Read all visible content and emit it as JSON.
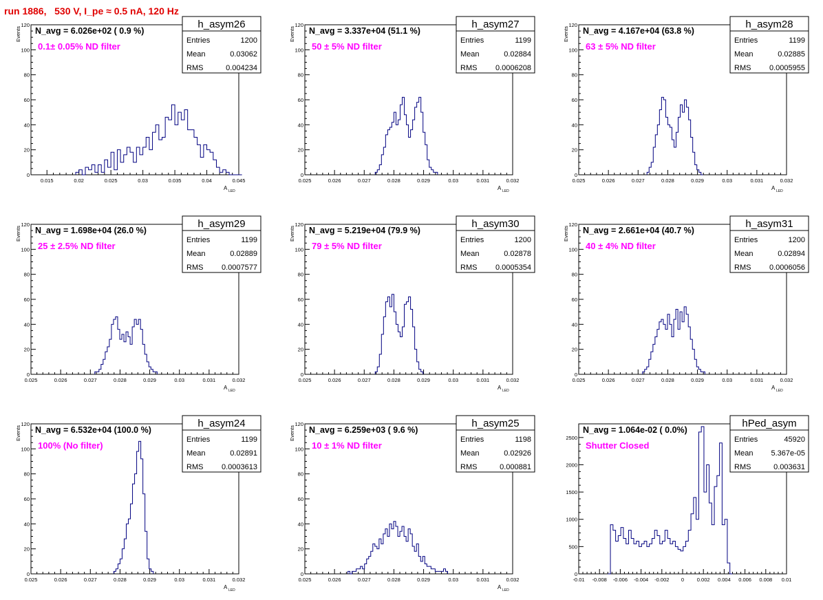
{
  "page": {
    "title": "run 1886,   530 V, I_pe ≈ 0.5 nA, 120 Hz"
  },
  "colors": {
    "histogram": "#000080",
    "filter_label": "#ff00ff",
    "title": "#e00000",
    "axis": "#000000"
  },
  "chart_data": [
    {
      "type": "histogram",
      "name": "h_asym26",
      "navg_text": "N_avg = 6.026e+02 ( 0.9 %)",
      "filter_text": "0.1± 0.05% ND filter",
      "stats": [
        [
          "Entries",
          "1200"
        ],
        [
          "Mean",
          "0.03062"
        ],
        [
          "RMS",
          "0.004234"
        ]
      ],
      "ylabel": "Events",
      "xlabel": "A",
      "xlabel_sub": "LED",
      "xlim": [
        0.0125,
        0.045
      ],
      "ylim": [
        0,
        120
      ],
      "xticks": [
        0.015,
        0.02,
        0.025,
        0.03,
        0.035,
        0.04,
        0.045
      ],
      "xtick_labels": [
        "0.015",
        "0.02",
        "0.025",
        "0.03",
        "0.035",
        "0.04",
        "0.045"
      ],
      "yticks": [
        0,
        20,
        40,
        60,
        80,
        100,
        120
      ],
      "ytick_labels": [
        "0",
        "20",
        "40",
        "60",
        "80",
        "100",
        "120"
      ],
      "bin_start": 0.0195,
      "bin_width": 0.0005,
      "counts": [
        2,
        4,
        0,
        6,
        4,
        8,
        2,
        8,
        2,
        12,
        6,
        18,
        4,
        20,
        10,
        16,
        22,
        18,
        10,
        22,
        16,
        22,
        30,
        20,
        34,
        40,
        28,
        30,
        46,
        44,
        56,
        40,
        50,
        44,
        52,
        36,
        36,
        30,
        24,
        14,
        24,
        20,
        18,
        12,
        6,
        2,
        4,
        2,
        0,
        0,
        0,
        0
      ]
    },
    {
      "type": "histogram",
      "name": "h_asym27",
      "navg_text": "N_avg = 3.337e+04 (51.1 %)",
      "filter_text": "50 ± 5% ND filter",
      "stats": [
        [
          "Entries",
          "1199"
        ],
        [
          "Mean",
          "0.02884"
        ],
        [
          "RMS",
          "0.0006208"
        ]
      ],
      "ylabel": "Events",
      "xlabel": "A",
      "xlabel_sub": "LED",
      "xlim": [
        0.025,
        0.032
      ],
      "ylim": [
        0,
        120
      ],
      "xticks": [
        0.025,
        0.026,
        0.027,
        0.028,
        0.029,
        0.03,
        0.031,
        0.032
      ],
      "xtick_labels": [
        "0.025",
        "0.026",
        "0.027",
        "0.028",
        "0.029",
        "0.03",
        "0.031",
        "0.032"
      ],
      "yticks": [
        0,
        20,
        40,
        60,
        80,
        100,
        120
      ],
      "ytick_labels": [
        "0",
        "20",
        "40",
        "60",
        "80",
        "100",
        "120"
      ],
      "bin_start": 0.02737,
      "bin_width": 7e-05,
      "counts": [
        2,
        4,
        8,
        16,
        22,
        32,
        36,
        38,
        42,
        50,
        40,
        44,
        56,
        62,
        48,
        40,
        30,
        36,
        44,
        54,
        58,
        62,
        50,
        34,
        24,
        12,
        6,
        4,
        2,
        2
      ]
    },
    {
      "type": "histogram",
      "name": "h_asym28",
      "navg_text": "N_avg = 4.167e+04 (63.8 %)",
      "filter_text": "63 ± 5% ND filter",
      "stats": [
        [
          "Entries",
          "1199"
        ],
        [
          "Mean",
          "0.02885"
        ],
        [
          "RMS",
          "0.0005955"
        ]
      ],
      "ylabel": "Events",
      "xlabel": "A",
      "xlabel_sub": "LED",
      "xlim": [
        0.025,
        0.032
      ],
      "ylim": [
        0,
        120
      ],
      "xticks": [
        0.025,
        0.026,
        0.027,
        0.028,
        0.029,
        0.03,
        0.031,
        0.032
      ],
      "xtick_labels": [
        "0.025",
        "0.026",
        "0.027",
        "0.028",
        "0.029",
        "0.03",
        "0.031",
        "0.032"
      ],
      "yticks": [
        0,
        20,
        40,
        60,
        80,
        100,
        120
      ],
      "ytick_labels": [
        "0",
        "20",
        "40",
        "60",
        "80",
        "100",
        "120"
      ],
      "bin_start": 0.0273,
      "bin_width": 7e-05,
      "counts": [
        2,
        6,
        10,
        22,
        32,
        40,
        52,
        62,
        60,
        46,
        40,
        38,
        28,
        22,
        34,
        46,
        56,
        50,
        60,
        54,
        44,
        30,
        18,
        8,
        4,
        2,
        0
      ]
    },
    {
      "type": "histogram",
      "name": "h_asym29",
      "navg_text": "N_avg = 1.698e+04 (26.0 %)",
      "filter_text": "25 ± 2.5% ND filter",
      "stats": [
        [
          "Entries",
          "1199"
        ],
        [
          "Mean",
          "0.02889"
        ],
        [
          "RMS",
          "0.0007577"
        ]
      ],
      "ylabel": "Events",
      "xlabel": "A",
      "xlabel_sub": "LED",
      "xlim": [
        0.025,
        0.032
      ],
      "ylim": [
        0,
        120
      ],
      "xticks": [
        0.025,
        0.026,
        0.027,
        0.028,
        0.029,
        0.03,
        0.031,
        0.032
      ],
      "xtick_labels": [
        "0.025",
        "0.026",
        "0.027",
        "0.028",
        "0.029",
        "0.03",
        "0.031",
        "0.032"
      ],
      "yticks": [
        0,
        20,
        40,
        60,
        80,
        100,
        120
      ],
      "ytick_labels": [
        "0",
        "20",
        "40",
        "60",
        "80",
        "100",
        "120"
      ],
      "bin_start": 0.02715,
      "bin_width": 7e-05,
      "counts": [
        2,
        2,
        4,
        8,
        12,
        18,
        22,
        28,
        40,
        44,
        46,
        36,
        28,
        32,
        26,
        34,
        30,
        24,
        38,
        44,
        40,
        44,
        36,
        24,
        16,
        10,
        6,
        4,
        2,
        2
      ]
    },
    {
      "type": "histogram",
      "name": "h_asym30",
      "navg_text": "N_avg = 5.219e+04 (79.9 %)",
      "filter_text": "79 ± 5% ND filter",
      "stats": [
        [
          "Entries",
          "1200"
        ],
        [
          "Mean",
          "0.02878"
        ],
        [
          "RMS",
          "0.0005354"
        ]
      ],
      "ylabel": "Events",
      "xlabel": "A",
      "xlabel_sub": "LED",
      "xlim": [
        0.025,
        0.032
      ],
      "ylim": [
        0,
        120
      ],
      "xticks": [
        0.025,
        0.026,
        0.027,
        0.028,
        0.029,
        0.03,
        0.031,
        0.032
      ],
      "xtick_labels": [
        "0.025",
        "0.026",
        "0.027",
        "0.028",
        "0.029",
        "0.03",
        "0.031",
        "0.032"
      ],
      "yticks": [
        0,
        20,
        40,
        60,
        80,
        100,
        120
      ],
      "ytick_labels": [
        "0",
        "20",
        "40",
        "60",
        "80",
        "100",
        "120"
      ],
      "bin_start": 0.02737,
      "bin_width": 7e-05,
      "counts": [
        2,
        6,
        16,
        32,
        46,
        58,
        62,
        54,
        64,
        50,
        40,
        34,
        30,
        38,
        56,
        58,
        62,
        52,
        38,
        20,
        10,
        4,
        2
      ]
    },
    {
      "type": "histogram",
      "name": "h_asym31",
      "navg_text": "N_avg = 2.661e+04 (40.7 %)",
      "filter_text": "40 ± 4% ND filter",
      "stats": [
        [
          "Entries",
          "1200"
        ],
        [
          "Mean",
          "0.02894"
        ],
        [
          "RMS",
          "0.0006056"
        ]
      ],
      "ylabel": "Events",
      "xlabel": "A",
      "xlabel_sub": "LED",
      "xlim": [
        0.025,
        0.032
      ],
      "ylim": [
        0,
        120
      ],
      "xticks": [
        0.025,
        0.026,
        0.027,
        0.028,
        0.029,
        0.03,
        0.031,
        0.032
      ],
      "xtick_labels": [
        "0.025",
        "0.026",
        "0.027",
        "0.028",
        "0.029",
        "0.03",
        "0.031",
        "0.032"
      ],
      "yticks": [
        0,
        20,
        40,
        60,
        80,
        100,
        120
      ],
      "ytick_labels": [
        "0",
        "20",
        "40",
        "60",
        "80",
        "100",
        "120"
      ],
      "bin_start": 0.02715,
      "bin_width": 7e-05,
      "counts": [
        2,
        4,
        6,
        12,
        18,
        24,
        30,
        36,
        42,
        44,
        40,
        36,
        48,
        40,
        30,
        44,
        52,
        36,
        50,
        42,
        54,
        48,
        38,
        28,
        20,
        12,
        6,
        4,
        2,
        2
      ]
    },
    {
      "type": "histogram",
      "name": "h_asym24",
      "navg_text": "N_avg = 6.532e+04 (100.0 %)",
      "filter_text": "100% (No filter)",
      "stats": [
        [
          "Entries",
          "1199"
        ],
        [
          "Mean",
          "0.02891"
        ],
        [
          "RMS",
          "0.0003613"
        ]
      ],
      "ylabel": "Events",
      "xlabel": "A",
      "xlabel_sub": "LED",
      "xlim": [
        0.025,
        0.032
      ],
      "ylim": [
        0,
        120
      ],
      "xticks": [
        0.025,
        0.026,
        0.027,
        0.028,
        0.029,
        0.03,
        0.031,
        0.032
      ],
      "xtick_labels": [
        "0.025",
        "0.026",
        "0.027",
        "0.028",
        "0.029",
        "0.03",
        "0.031",
        "0.032"
      ],
      "yticks": [
        0,
        20,
        40,
        60,
        80,
        100,
        120
      ],
      "ytick_labels": [
        "0",
        "20",
        "40",
        "60",
        "80",
        "100",
        "120"
      ],
      "bin_start": 0.02779,
      "bin_width": 7e-05,
      "counts": [
        2,
        4,
        8,
        12,
        20,
        28,
        40,
        44,
        56,
        72,
        80,
        98,
        106,
        92,
        64,
        34,
        12,
        4,
        2
      ]
    },
    {
      "type": "histogram",
      "name": "h_asym25",
      "navg_text": "N_avg = 6.259e+03 ( 9.6 %)",
      "filter_text": "10 ± 1% ND filter",
      "stats": [
        [
          "Entries",
          "1198"
        ],
        [
          "Mean",
          "0.02926"
        ],
        [
          "RMS",
          "0.000881"
        ]
      ],
      "ylabel": "Events",
      "xlabel": "A",
      "xlabel_sub": "LED",
      "xlim": [
        0.025,
        0.032
      ],
      "ylim": [
        0,
        120
      ],
      "xticks": [
        0.025,
        0.026,
        0.027,
        0.028,
        0.029,
        0.03,
        0.031,
        0.032
      ],
      "xtick_labels": [
        "0.025",
        "0.026",
        "0.027",
        "0.028",
        "0.029",
        "0.03",
        "0.031",
        "0.032"
      ],
      "yticks": [
        0,
        20,
        40,
        60,
        80,
        100,
        120
      ],
      "ytick_labels": [
        "0",
        "20",
        "40",
        "60",
        "80",
        "100",
        "120"
      ],
      "bin_start": 0.02645,
      "bin_width": 7e-05,
      "counts": [
        2,
        0,
        2,
        2,
        4,
        4,
        6,
        4,
        8,
        12,
        14,
        18,
        24,
        22,
        20,
        28,
        24,
        32,
        36,
        30,
        40,
        36,
        42,
        38,
        30,
        34,
        38,
        30,
        26,
        36,
        32,
        22,
        18,
        24,
        14,
        10,
        14,
        8,
        6,
        6,
        4,
        4,
        2,
        2,
        2,
        2,
        4,
        2
      ]
    },
    {
      "type": "histogram",
      "name": "hPed_asym",
      "navg_text": "N_avg = 1.064e-02 ( 0.0%)",
      "filter_text": "Shutter Closed",
      "stats": [
        [
          "Entries",
          "45920"
        ],
        [
          "Mean",
          "5.367e-05"
        ],
        [
          "RMS",
          "0.003631"
        ]
      ],
      "ylabel": "",
      "xlabel": "",
      "xlabel_sub": "",
      "xlim": [
        -0.01,
        0.01
      ],
      "ylim": [
        0,
        2750
      ],
      "xticks": [
        -0.01,
        -0.008,
        -0.006,
        -0.004,
        -0.002,
        0,
        0.002,
        0.004,
        0.006,
        0.008,
        0.01
      ],
      "xtick_labels": [
        "-0.01",
        "-0.008",
        "-0.006",
        "-0.004",
        "-0.002",
        "0",
        "0.002",
        "0.004",
        "0.006",
        "0.008",
        "0.01"
      ],
      "yticks": [
        0,
        500,
        1000,
        1500,
        2000,
        2500
      ],
      "ytick_labels": [
        "0",
        "500",
        "1000",
        "1500",
        "2000",
        "2500"
      ],
      "bin_start": -0.0072,
      "bin_width": 0.00025,
      "counts": [
        0,
        900,
        800,
        600,
        700,
        850,
        650,
        550,
        800,
        650,
        550,
        600,
        500,
        550,
        600,
        500,
        550,
        650,
        800,
        700,
        550,
        600,
        800,
        650,
        550,
        600,
        500,
        450,
        420,
        500,
        600,
        800,
        1100,
        1400,
        1000,
        2600,
        2700,
        1500,
        2000,
        1300,
        900,
        1600,
        1800,
        2400,
        900,
        1000,
        200,
        0
      ]
    }
  ]
}
